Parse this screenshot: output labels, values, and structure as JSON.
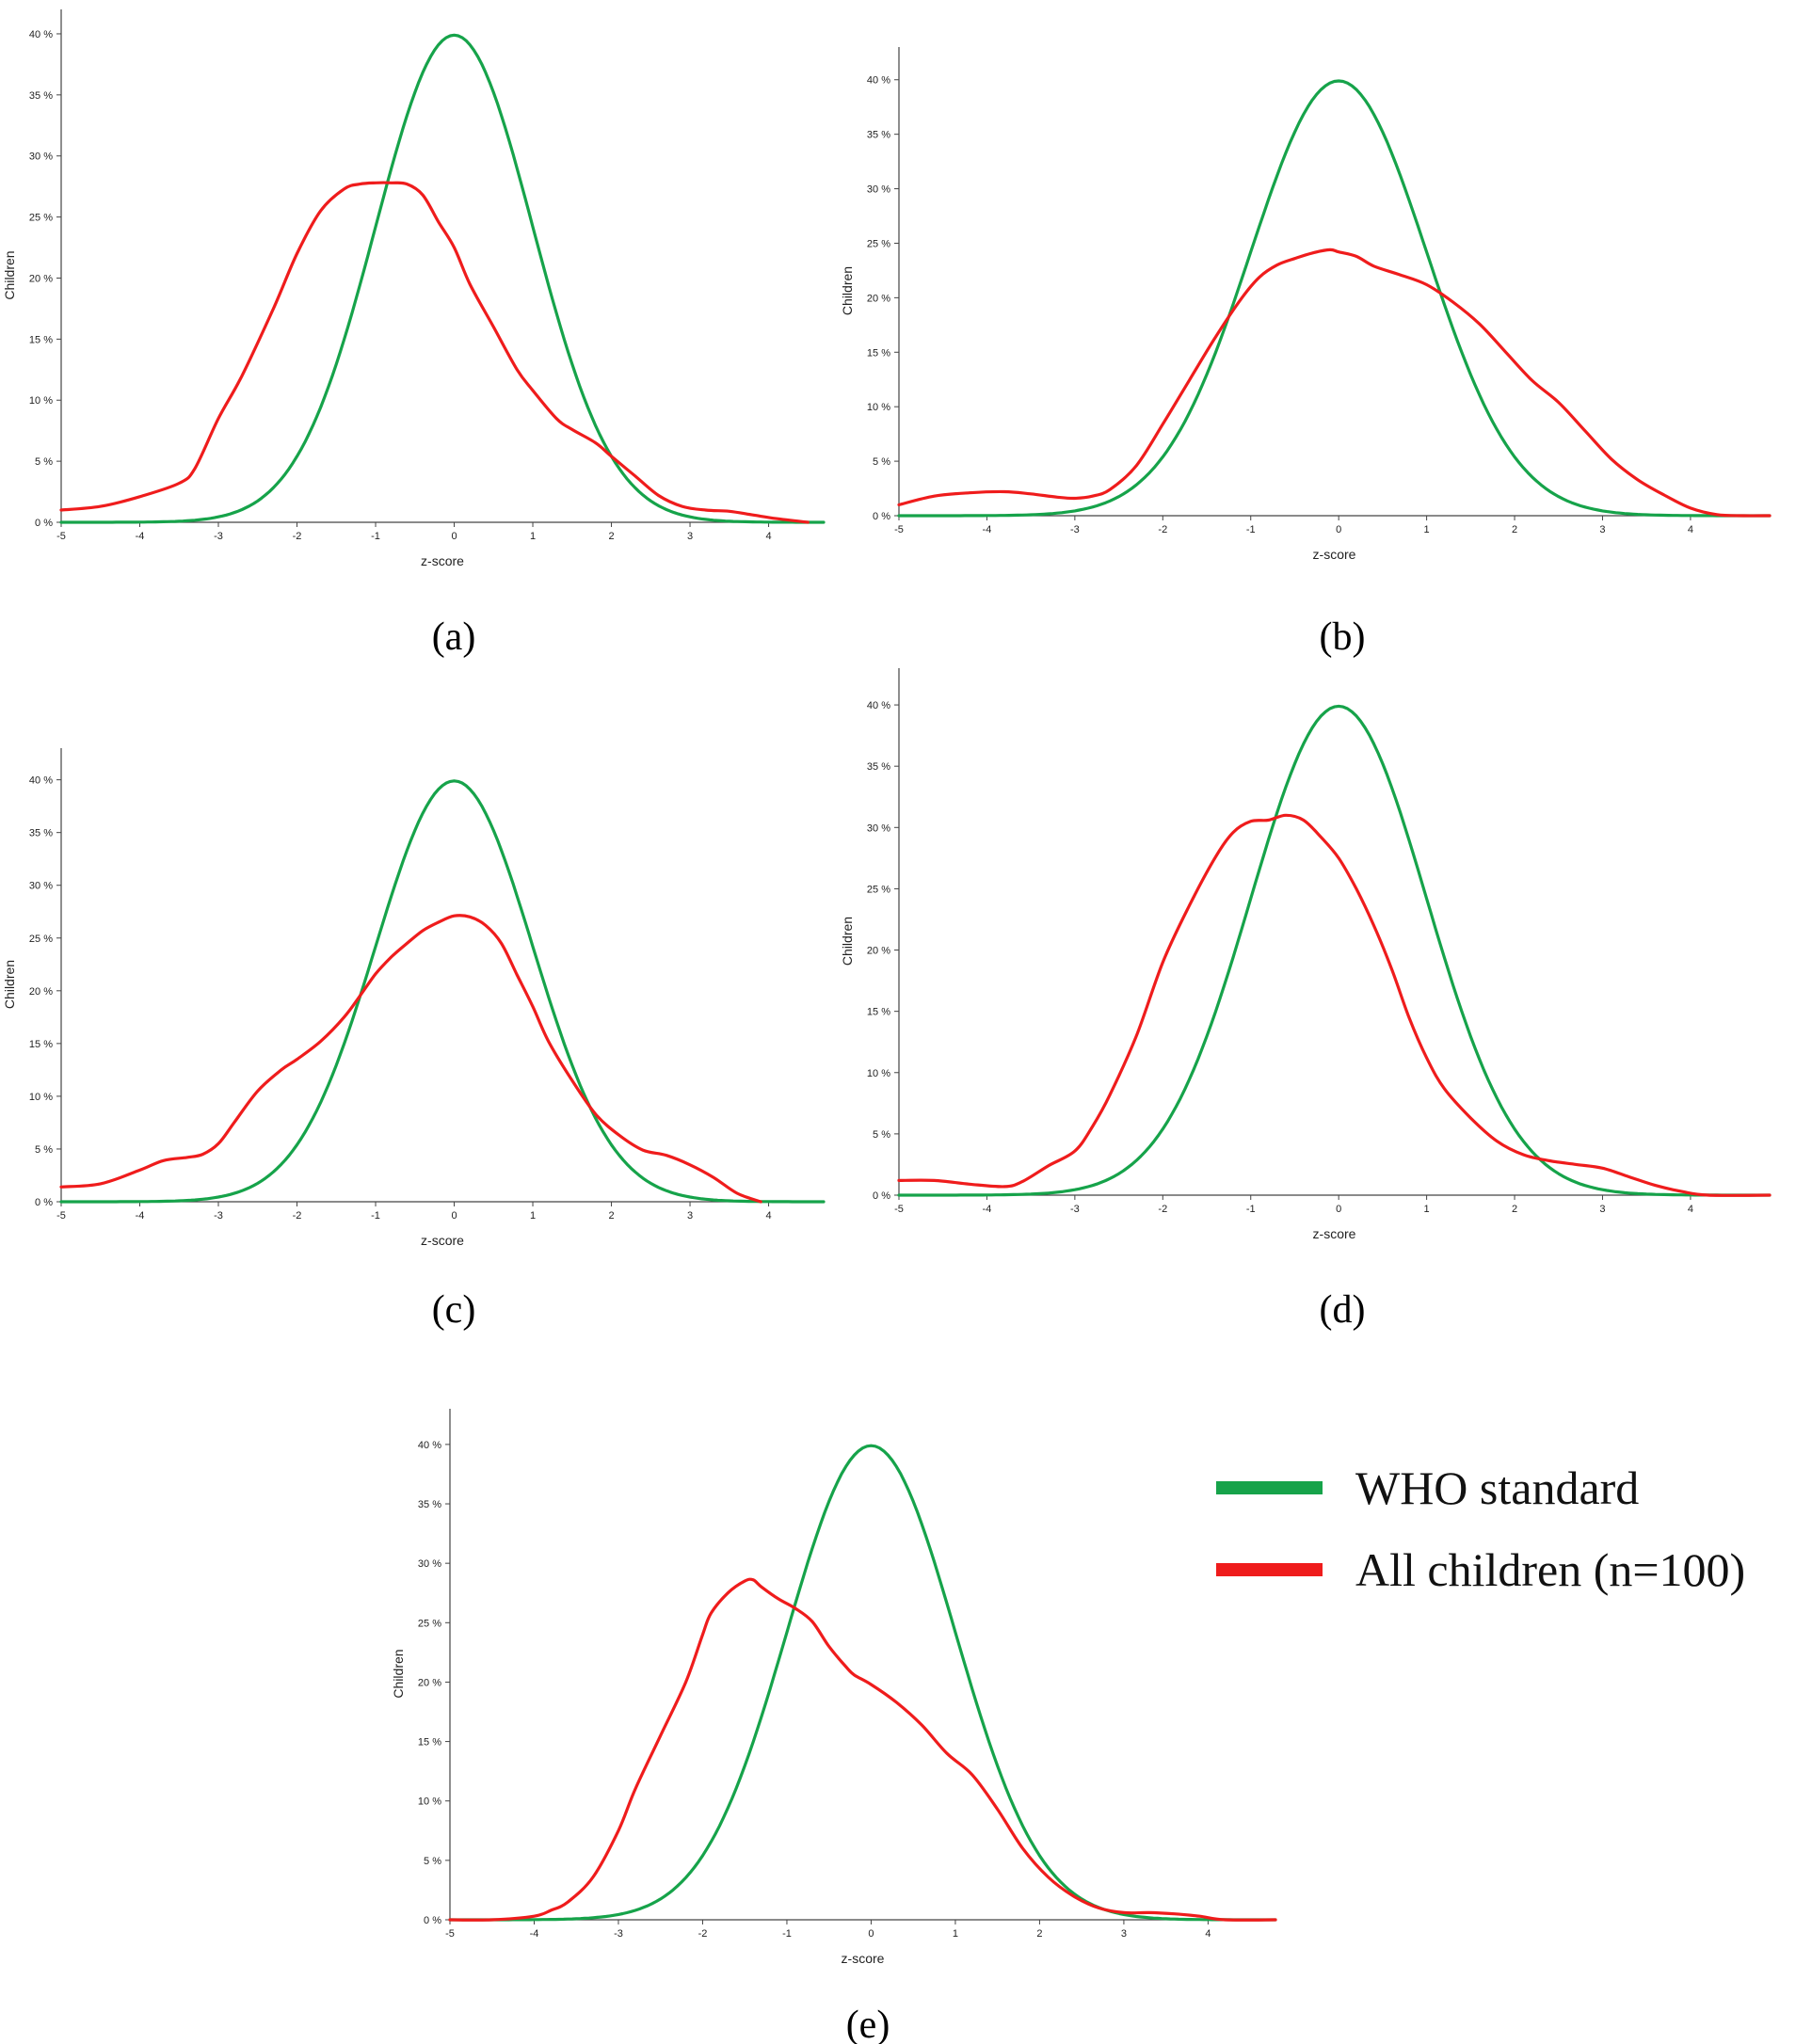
{
  "legend": {
    "items": [
      {
        "label": "WHO standard",
        "color": "#16a34a"
      },
      {
        "label": "All children (n=100)",
        "color": "#ef1c1c"
      }
    ]
  },
  "chart_data": [
    {
      "type": "line",
      "caption": "(a)",
      "xlabel": "z-score",
      "ylabel": "Children",
      "xlim": [
        -5,
        4.7
      ],
      "ylim": [
        0,
        42
      ],
      "xticks": [
        "-5",
        "-4",
        "-3",
        "-2",
        "-1",
        "0",
        "1",
        "2",
        "3",
        "4"
      ],
      "yticks": [
        "0 %",
        "5 %",
        "10 %",
        "15 %",
        "20 %",
        "25 %",
        "30 %",
        "35 %",
        "40 %"
      ],
      "series": [
        {
          "name": "WHO standard",
          "color": "#16a34a",
          "kind": "normal"
        },
        {
          "name": "All children (n=100)",
          "color": "#ef1c1c",
          "x": [
            -5,
            -4.5,
            -4,
            -3.5,
            -3.3,
            -3,
            -2.7,
            -2.3,
            -2,
            -1.7,
            -1.4,
            -1.2,
            -1,
            -0.8,
            -0.6,
            -0.4,
            -0.2,
            0,
            0.2,
            0.5,
            0.8,
            1,
            1.3,
            1.5,
            1.8,
            2,
            2.3,
            2.6,
            2.9,
            3.2,
            3.5,
            3.8,
            4.1,
            4.5
          ],
          "y": [
            1,
            1.3,
            2.1,
            3.2,
            4.4,
            8.5,
            12,
            17.5,
            22,
            25.5,
            27.3,
            27.7,
            27.8,
            27.8,
            27.7,
            26.8,
            24.6,
            22.5,
            19.5,
            16,
            12.5,
            10.8,
            8.5,
            7.6,
            6.5,
            5.4,
            3.8,
            2.2,
            1.3,
            1,
            0.9,
            0.6,
            0.3,
            0
          ]
        }
      ]
    },
    {
      "type": "line",
      "caption": "(b)",
      "xlabel": "z-score",
      "ylabel": "Children",
      "xlim": [
        -5,
        4.9
      ],
      "ylim": [
        0,
        43
      ],
      "xticks": [
        "-5",
        "-4",
        "-3",
        "-2",
        "-1",
        "0",
        "1",
        "2",
        "3",
        "4"
      ],
      "yticks": [
        "0 %",
        "5 %",
        "10 %",
        "15 %",
        "20 %",
        "25 %",
        "30 %",
        "35 %",
        "40 %"
      ],
      "series": [
        {
          "name": "WHO standard",
          "color": "#16a34a",
          "kind": "normal"
        },
        {
          "name": "All children (n=100)",
          "color": "#ef1c1c",
          "x": [
            -5,
            -4.6,
            -4.2,
            -3.8,
            -3.5,
            -3.2,
            -3,
            -2.8,
            -2.6,
            -2.3,
            -2,
            -1.7,
            -1.4,
            -1.1,
            -0.9,
            -0.7,
            -0.5,
            -0.3,
            -0.1,
            0,
            0.2,
            0.4,
            0.7,
            1,
            1.3,
            1.6,
            1.9,
            2.2,
            2.5,
            2.8,
            3.1,
            3.4,
            3.7,
            4,
            4.3,
            4.6,
            4.9
          ],
          "y": [
            1,
            1.8,
            2.1,
            2.2,
            2,
            1.7,
            1.6,
            1.8,
            2.4,
            4.6,
            8.4,
            12.4,
            16.4,
            20,
            21.9,
            23,
            23.6,
            24.1,
            24.4,
            24.2,
            23.8,
            22.9,
            22.1,
            21.2,
            19.6,
            17.6,
            15,
            12.4,
            10.4,
            7.8,
            5.2,
            3.3,
            1.9,
            0.7,
            0.1,
            0,
            0
          ]
        }
      ]
    },
    {
      "type": "line",
      "caption": "(c)",
      "xlabel": "z-score",
      "ylabel": "Children",
      "xlim": [
        -5,
        4.7
      ],
      "ylim": [
        0,
        43
      ],
      "xticks": [
        "-5",
        "-4",
        "-3",
        "-2",
        "-1",
        "0",
        "1",
        "2",
        "3",
        "4"
      ],
      "yticks": [
        "0 %",
        "5 %",
        "10 %",
        "15 %",
        "20 %",
        "25 %",
        "30 %",
        "35 %",
        "40 %"
      ],
      "series": [
        {
          "name": "WHO standard",
          "color": "#16a34a",
          "kind": "normal"
        },
        {
          "name": "All children (n=100)",
          "color": "#ef1c1c",
          "x": [
            -5,
            -4.5,
            -4,
            -3.7,
            -3.4,
            -3.2,
            -3,
            -2.8,
            -2.5,
            -2.2,
            -2,
            -1.7,
            -1.4,
            -1.2,
            -1,
            -0.8,
            -0.6,
            -0.4,
            -0.2,
            0,
            0.2,
            0.4,
            0.6,
            0.8,
            1,
            1.2,
            1.5,
            1.8,
            2.1,
            2.4,
            2.7,
            3,
            3.3,
            3.6,
            3.9
          ],
          "y": [
            1.4,
            1.7,
            3,
            3.9,
            4.2,
            4.5,
            5.5,
            7.5,
            10.5,
            12.5,
            13.5,
            15.2,
            17.5,
            19.5,
            21.6,
            23.2,
            24.5,
            25.7,
            26.5,
            27.1,
            27,
            26.2,
            24.5,
            21.5,
            18.5,
            15.2,
            11.5,
            8.3,
            6.3,
            4.9,
            4.4,
            3.5,
            2.3,
            0.8,
            0
          ]
        }
      ]
    },
    {
      "type": "line",
      "caption": "(d)",
      "xlabel": "z-score",
      "ylabel": "Children",
      "xlim": [
        -5,
        4.9
      ],
      "ylim": [
        0,
        43
      ],
      "xticks": [
        "-5",
        "-4",
        "-3",
        "-2",
        "-1",
        "0",
        "1",
        "2",
        "3",
        "4"
      ],
      "yticks": [
        "0 %",
        "5 %",
        "10 %",
        "15 %",
        "20 %",
        "25 %",
        "30 %",
        "35 %",
        "40 %"
      ],
      "series": [
        {
          "name": "WHO standard",
          "color": "#16a34a",
          "kind": "normal"
        },
        {
          "name": "All children (n=100)",
          "color": "#ef1c1c",
          "x": [
            -5,
            -4.6,
            -4.2,
            -3.8,
            -3.6,
            -3.3,
            -3,
            -2.8,
            -2.6,
            -2.3,
            -2,
            -1.7,
            -1.4,
            -1.2,
            -1,
            -0.8,
            -0.6,
            -0.4,
            -0.2,
            0,
            0.2,
            0.4,
            0.6,
            0.8,
            1,
            1.2,
            1.5,
            1.8,
            2.1,
            2.4,
            2.7,
            3,
            3.3,
            3.6,
            3.9,
            4.2,
            4.9
          ],
          "y": [
            1.2,
            1.2,
            0.9,
            0.7,
            1.1,
            2.4,
            3.6,
            5.6,
            8.2,
            13,
            19,
            23.6,
            27.6,
            29.6,
            30.5,
            30.6,
            31,
            30.6,
            29.2,
            27.5,
            25,
            22,
            18.5,
            14.5,
            11.2,
            8.7,
            6.3,
            4.4,
            3.3,
            2.8,
            2.5,
            2.2,
            1.5,
            0.8,
            0.3,
            0,
            0
          ]
        }
      ]
    },
    {
      "type": "line",
      "caption": "(e)",
      "xlabel": "z-score",
      "ylabel": "Children",
      "xlim": [
        -5,
        4.8
      ],
      "ylim": [
        0,
        43
      ],
      "xticks": [
        "-5",
        "-4",
        "-3",
        "-2",
        "-1",
        "0",
        "1",
        "2",
        "3",
        "4"
      ],
      "yticks": [
        "0 %",
        "5 %",
        "10 %",
        "15 %",
        "20 %",
        "25 %",
        "30 %",
        "35 %",
        "40 %"
      ],
      "series": [
        {
          "name": "WHO standard",
          "color": "#16a34a",
          "kind": "normal"
        },
        {
          "name": "All children (n=100)",
          "color": "#ef1c1c",
          "x": [
            -5,
            -4.5,
            -4,
            -3.8,
            -3.6,
            -3.3,
            -3,
            -2.8,
            -2.5,
            -2.2,
            -2,
            -1.9,
            -1.7,
            -1.5,
            -1.4,
            -1.3,
            -1.1,
            -0.9,
            -0.7,
            -0.5,
            -0.3,
            -0.2,
            0,
            0.3,
            0.6,
            0.9,
            1.2,
            1.5,
            1.8,
            2.1,
            2.4,
            2.7,
            3,
            3.3,
            3.6,
            3.9,
            4.2,
            4.8
          ],
          "y": [
            0,
            0,
            0.3,
            0.8,
            1.5,
            3.6,
            7.5,
            11,
            15.5,
            20,
            24,
            25.8,
            27.5,
            28.5,
            28.6,
            28,
            27,
            26.2,
            25.1,
            23,
            21.3,
            20.6,
            19.8,
            18.3,
            16.4,
            14,
            12.2,
            9.3,
            6,
            3.6,
            2,
            1,
            0.6,
            0.6,
            0.5,
            0.3,
            0,
            0
          ]
        }
      ]
    }
  ]
}
